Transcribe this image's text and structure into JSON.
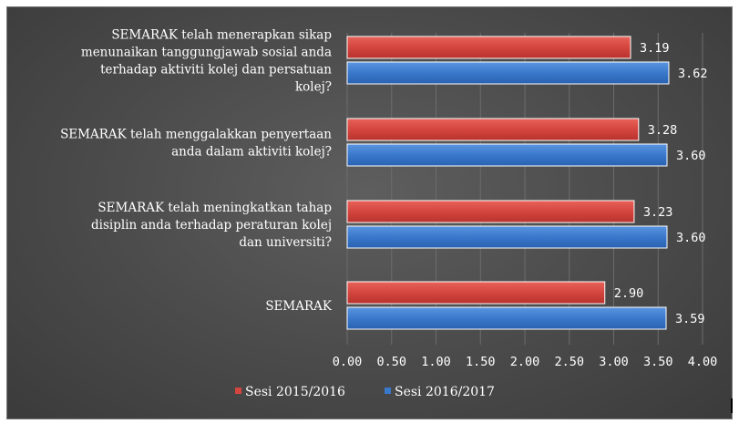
{
  "chart_data": {
    "type": "bar",
    "orientation": "horizontal",
    "categories": [
      [
        "SEMARAK telah menerapkan sikap",
        "menunaikan tanggungjawab sosial anda",
        "terhadap aktiviti kolej dan persatuan",
        "kolej?"
      ],
      [
        "SEMARAK telah menggalakkan penyertaan",
        "anda dalam aktiviti kolej?"
      ],
      [
        "SEMARAK telah meningkatkan tahap",
        "disiplin anda terhadap peraturan kolej",
        "dan universiti?"
      ],
      [
        "SEMARAK"
      ]
    ],
    "series": [
      {
        "name": "Sesi 2015/2016",
        "color": "#d4453f",
        "values": [
          3.19,
          3.28,
          3.23,
          2.9
        ],
        "labels": [
          "3.19",
          "3.28",
          "3.23",
          "2.90"
        ]
      },
      {
        "name": "Sesi 2016/2017",
        "color": "#3a78cc",
        "values": [
          3.62,
          3.6,
          3.6,
          3.59
        ],
        "labels": [
          "3.62",
          "3.60",
          "3.60",
          "3.59"
        ]
      }
    ],
    "xlim": [
      0,
      4
    ],
    "xticks": [
      "0.00",
      "0.50",
      "1.00",
      "1.50",
      "2.00",
      "2.50",
      "3.00",
      "3.50",
      "4.00"
    ],
    "grid": true,
    "legend_position": "bottom"
  }
}
